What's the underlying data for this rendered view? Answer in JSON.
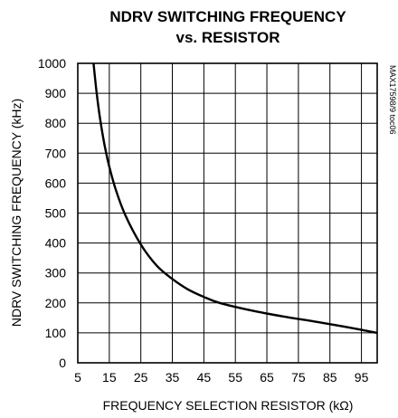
{
  "chart_data": {
    "type": "line",
    "title_line1": "NDRV SWITCHING FREQUENCY",
    "title_line2": "vs. RESISTOR",
    "xlabel": "FREQUENCY SELECTION RESISTOR (kΩ)",
    "ylabel": "NDRV SWITCHING FREQUENCY (kHz)",
    "side_note": "MAX17598/9 toc06",
    "xlim": [
      5,
      100
    ],
    "ylim": [
      0,
      1000
    ],
    "x_ticks": [
      5,
      15,
      25,
      35,
      45,
      55,
      65,
      75,
      85,
      95
    ],
    "y_ticks": [
      0,
      100,
      200,
      300,
      400,
      500,
      600,
      700,
      800,
      900,
      1000
    ],
    "grid": true,
    "series": [
      {
        "x": [
          10,
          11,
          12,
          13,
          14,
          15,
          17,
          20,
          25,
          30,
          35,
          40,
          45,
          50,
          60,
          70,
          80,
          90,
          100
        ],
        "y": [
          1000,
          900,
          820,
          755,
          700,
          655,
          580,
          495,
          395,
          325,
          280,
          245,
          220,
          200,
          175,
          155,
          138,
          120,
          100
        ]
      }
    ]
  }
}
